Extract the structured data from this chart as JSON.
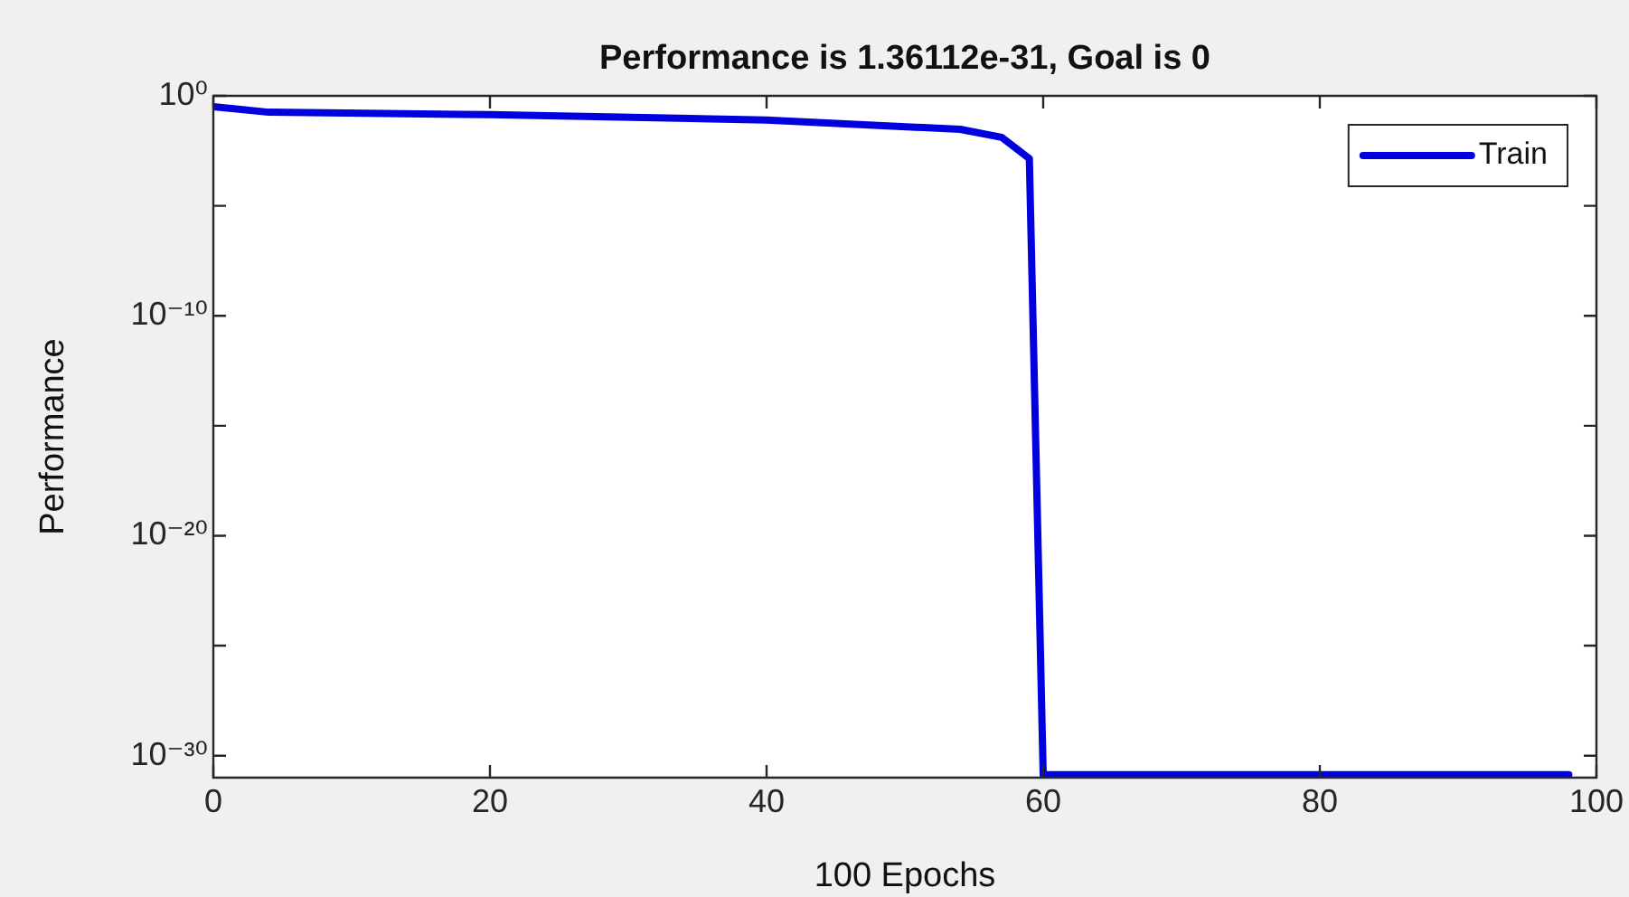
{
  "chart_data": {
    "type": "line",
    "title": "Performance is 1.36112e-31, Goal is 0",
    "xlabel": "100 Epochs",
    "ylabel": "Performance",
    "x": [
      0,
      4,
      20,
      40,
      54,
      57,
      59,
      60,
      98
    ],
    "series": [
      {
        "name": "Train",
        "color": "#0000e0",
        "values": [
          0.32,
          0.18,
          0.14,
          0.08,
          0.03,
          0.013,
          0.0014,
          1.36e-31,
          1.36e-31
        ]
      }
    ],
    "log": "y",
    "xlim": [
      0,
      100
    ],
    "xticks": [
      0,
      20,
      40,
      60,
      80,
      100
    ],
    "ylim": [
      1e-31,
      1
    ],
    "yticks": [
      {
        "value": 1e-30,
        "label": "10⁻³⁰"
      },
      {
        "value": 1e-25,
        "label": null
      },
      {
        "value": 1e-20,
        "label": "10⁻²⁰"
      },
      {
        "value": 1e-15,
        "label": null
      },
      {
        "value": 1e-10,
        "label": "10⁻¹⁰"
      },
      {
        "value": 1e-05,
        "label": null
      },
      {
        "value": 1,
        "label": "10⁰"
      }
    ],
    "legend": "top right",
    "grid": false,
    "marker": "none",
    "line_style": "solid"
  }
}
